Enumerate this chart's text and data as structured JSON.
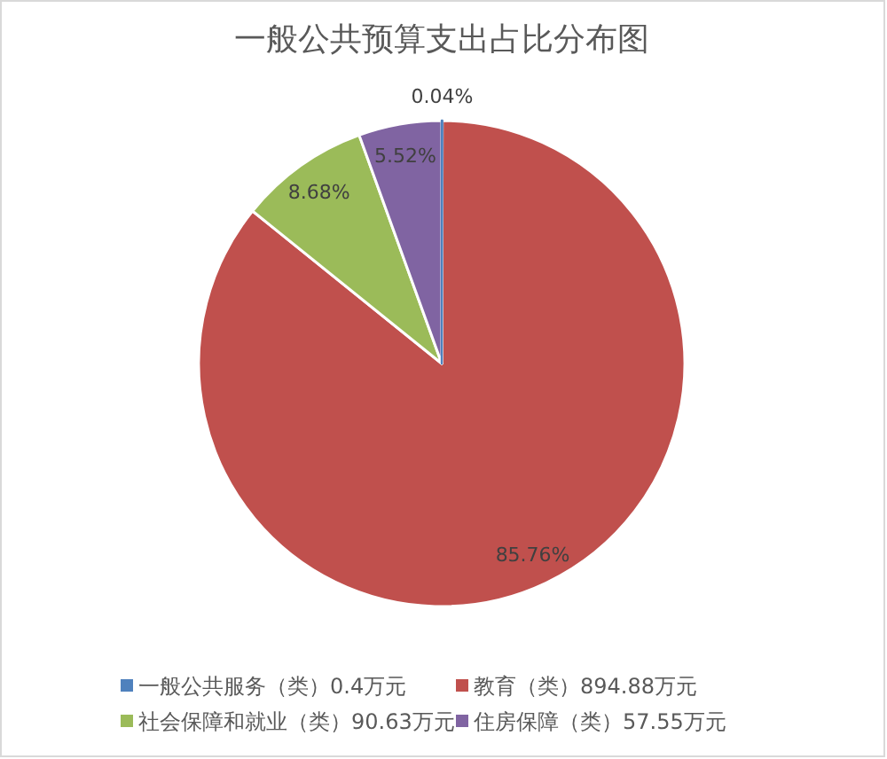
{
  "chart_data": {
    "type": "pie",
    "title": "一般公共预算支出占比分布图",
    "categories": [
      "一般公共服务（类）0.4万元",
      "教育（类）894.88万元",
      "社会保障和就业（类）90.63万元",
      "住房保障（类）57.55万元"
    ],
    "values": [
      0.04,
      85.76,
      8.68,
      5.52
    ],
    "colors": [
      "#4f81bd",
      "#c0504d",
      "#9bbb59",
      "#8064a2"
    ],
    "value_labels": [
      "0.04%",
      "85.76%",
      "8.68%",
      "5.52%"
    ],
    "legend": "bottom"
  }
}
